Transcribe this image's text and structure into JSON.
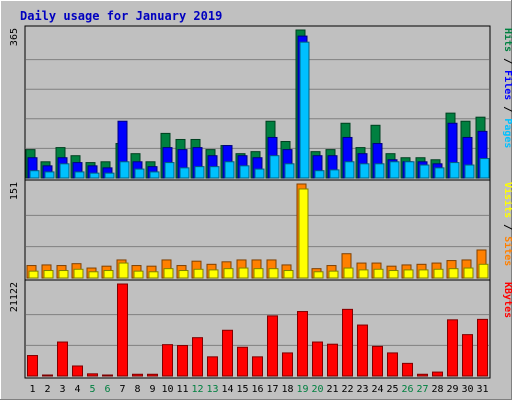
{
  "chart_data": {
    "type": "bar",
    "title": "Daily usage for January 2019",
    "categories": [
      "1",
      "2",
      "3",
      "4",
      "5",
      "6",
      "7",
      "8",
      "9",
      "10",
      "11",
      "12",
      "13",
      "14",
      "15",
      "16",
      "17",
      "18",
      "19",
      "20",
      "21",
      "22",
      "23",
      "24",
      "25",
      "26",
      "27",
      "28",
      "29",
      "30",
      "31"
    ],
    "weekend_days": [
      "5",
      "6",
      "12",
      "13",
      "19",
      "20",
      "26",
      "27"
    ],
    "panels": [
      {
        "id": "pages-files-hits",
        "ymax": 365,
        "ymax_label": "365",
        "legend": [
          {
            "label": "Hits",
            "color": "#008040"
          },
          {
            "label": "Files",
            "color": "#0000FF"
          },
          {
            "label": "Pages",
            "color": "#00C0FF"
          }
        ],
        "series": [
          {
            "name": "Hits",
            "color": "#008040",
            "values": [
              70,
              40,
              75,
              55,
              38,
              40,
              85,
              60,
              40,
              110,
              95,
              95,
              70,
              80,
              60,
              65,
              140,
              90,
              365,
              65,
              70,
              135,
              75,
              130,
              60,
              50,
              50,
              45,
              160,
              140,
              150
            ]
          },
          {
            "name": "Files",
            "color": "#0000FF",
            "values": [
              50,
              30,
              50,
              38,
              30,
              25,
              140,
              40,
              28,
              75,
              70,
              75,
              55,
              80,
              55,
              50,
              100,
              70,
              350,
              55,
              55,
              100,
              60,
              85,
              45,
              40,
              40,
              35,
              135,
              100,
              115
            ]
          },
          {
            "name": "Pages",
            "color": "#00C0FF",
            "values": [
              18,
              15,
              35,
              15,
              12,
              12,
              40,
              22,
              15,
              38,
              25,
              28,
              28,
              40,
              30,
              22,
              55,
              35,
              335,
              18,
              20,
              40,
              35,
              35,
              40,
              40,
              32,
              25,
              38,
              32,
              48
            ]
          }
        ]
      },
      {
        "id": "sites-visits",
        "ymax": 151,
        "ymax_label": "151",
        "legend": [
          {
            "label": "Visits",
            "color": "#FFFF00"
          },
          {
            "label": "Sites",
            "color": "#FF8000"
          }
        ],
        "series": [
          {
            "name": "Sites",
            "color": "#FF8000",
            "values": [
              20,
              21,
              20,
              23,
              16,
              19,
              29,
              20,
              19,
              29,
              20,
              27,
              22,
              26,
              29,
              29,
              29,
              21,
              151,
              15,
              20,
              39,
              24,
              24,
              19,
              21,
              22,
              24,
              28,
              29,
              45
            ]
          },
          {
            "name": "Visits",
            "color": "#FFFF00",
            "values": [
              11,
              12,
              12,
              14,
              10,
              12,
              24,
              11,
              10,
              15,
              12,
              14,
              13,
              15,
              16,
              15,
              15,
              12,
              143,
              10,
              11,
              16,
              13,
              14,
              12,
              13,
              13,
              14,
              15,
              16,
              22
            ]
          }
        ]
      },
      {
        "id": "kbytes",
        "ymax": 21122,
        "ymax_label": "21122",
        "legend": [
          {
            "label": "KBytes",
            "color": "#FF0000"
          }
        ],
        "series": [
          {
            "name": "KBytes",
            "color": "#FF0000",
            "values": [
              4700,
              200,
              7800,
              2300,
              500,
              200,
              21122,
              400,
              400,
              7200,
              7000,
              8800,
              4400,
              10500,
              6600,
              4400,
              13800,
              5300,
              14800,
              7800,
              7300,
              15300,
              11700,
              6800,
              5300,
              2900,
              400,
              900,
              12900,
              9500,
              13000
            ]
          }
        ]
      }
    ]
  }
}
